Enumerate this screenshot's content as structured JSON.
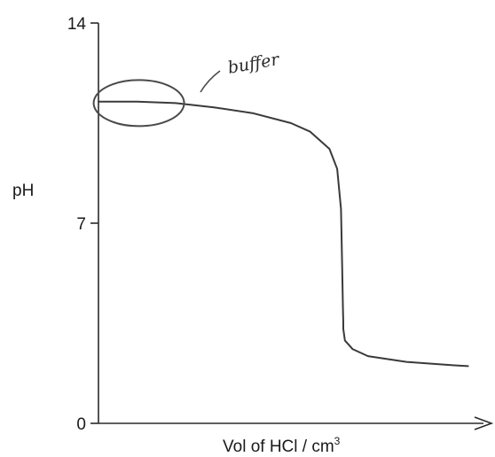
{
  "chart_data": {
    "type": "line",
    "title": "",
    "xlabel": "Vol of HCl / cm",
    "xlabel_superscript": "3",
    "ylabel": "pH",
    "ylim": [
      0,
      14
    ],
    "yticks": [
      {
        "value": 0,
        "label": "0"
      },
      {
        "value": 7,
        "label": "7"
      },
      {
        "value": 14,
        "label": "14"
      }
    ],
    "xlim": [
      0,
      100
    ],
    "grid": false,
    "series": [
      {
        "x": [
          0,
          5,
          10,
          20,
          30,
          40,
          50,
          55,
          60,
          62,
          63,
          63.3,
          63.5,
          63.6,
          63.6,
          64,
          66,
          70,
          80,
          90,
          96
        ],
        "y": [
          11.25,
          11.25,
          11.25,
          11.2,
          11.05,
          10.85,
          10.5,
          10.2,
          9.6,
          8.9,
          7.5,
          5.5,
          4.0,
          3.5,
          3.3,
          2.9,
          2.6,
          2.35,
          2.15,
          2.05,
          2.0
        ]
      }
    ],
    "annotations": [
      {
        "text": "buffer",
        "shape": "ellipse",
        "center_x": 10.5,
        "center_y": 11.2
      }
    ],
    "colors": {
      "line": "#3a3a3a",
      "axis": "#2a2a2a",
      "annotation": "#4a4a4a"
    }
  }
}
